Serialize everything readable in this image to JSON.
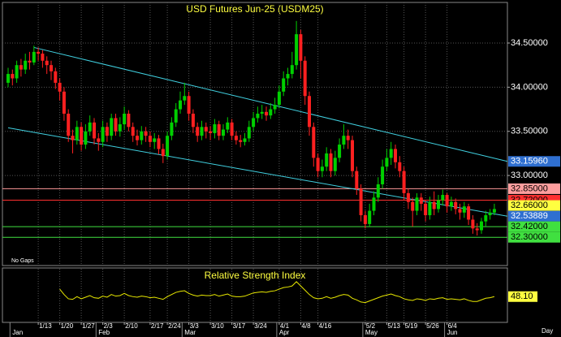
{
  "chart_data": {
    "type": "candlestick",
    "title": "USD Futures Jun-25  (USDM25)",
    "note": "No Gaps",
    "x_label": "Day",
    "categories": [
      null,
      null,
      null,
      null,
      null,
      null,
      null,
      "1/13",
      null,
      null,
      null,
      null,
      "1/20",
      null,
      null,
      null,
      null,
      "1/27",
      null,
      null,
      null,
      null,
      "2/3",
      null,
      null,
      null,
      null,
      "2/10",
      null,
      null,
      null,
      null,
      null,
      "2/17",
      null,
      null,
      null,
      "2/24",
      null,
      null,
      null,
      null,
      "3/3",
      null,
      null,
      null,
      null,
      "3/10",
      null,
      null,
      null,
      null,
      "3/17",
      null,
      null,
      null,
      null,
      "3/24",
      null,
      null,
      null,
      null,
      null,
      "4/1",
      null,
      null,
      null,
      null,
      "4/8",
      null,
      null,
      null,
      "4/16",
      null,
      null,
      null,
      null,
      null,
      null,
      null,
      null,
      null,
      null,
      "5/2",
      null,
      null,
      null,
      null,
      "5/13",
      null,
      null,
      null,
      "5/19",
      null,
      null,
      null,
      null,
      "5/26",
      null,
      null,
      null,
      null,
      "6/4",
      null,
      null,
      null,
      null,
      null,
      null,
      null,
      null,
      null,
      null,
      null
    ],
    "months": [
      {
        "index": 1,
        "label": "Jan"
      },
      {
        "index": 21,
        "label": "Feb"
      },
      {
        "index": 41,
        "label": "Mar"
      },
      {
        "index": 63,
        "label": "Apr"
      },
      {
        "index": 83,
        "label": "May"
      },
      {
        "index": 102,
        "label": "Jun"
      }
    ],
    "open": [
      34.05,
      34.15,
      34.1,
      34.25,
      34.2,
      34.3,
      34.28,
      34.4,
      34.38,
      34.3,
      34.25,
      34.18,
      34.05,
      33.95,
      33.7,
      33.45,
      33.4,
      33.55,
      33.35,
      33.5,
      33.6,
      33.42,
      33.38,
      33.55,
      33.45,
      33.65,
      33.5,
      33.58,
      33.7,
      33.55,
      33.45,
      33.4,
      33.5,
      33.45,
      33.38,
      33.42,
      33.3,
      33.22,
      33.45,
      33.6,
      33.75,
      33.85,
      33.9,
      33.7,
      33.55,
      33.45,
      33.55,
      33.5,
      33.48,
      33.58,
      33.45,
      33.52,
      33.6,
      33.45,
      33.4,
      33.38,
      33.42,
      33.55,
      33.65,
      33.7,
      33.72,
      33.68,
      33.75,
      33.8,
      33.95,
      34.1,
      34.15,
      34.25,
      34.6,
      34.3,
      33.9,
      33.55,
      33.2,
      33.05,
      33.1,
      33.25,
      33.05,
      33.2,
      33.35,
      33.45,
      33.4,
      33.05,
      32.85,
      32.55,
      32.45,
      32.6,
      32.75,
      32.9,
      33.1,
      33.2,
      33.3,
      33.15,
      33.05,
      32.8,
      32.7,
      32.6,
      32.75,
      32.68,
      32.55,
      32.7,
      32.62,
      32.72,
      32.78,
      32.65,
      32.7,
      32.62,
      32.58,
      32.65,
      32.5,
      32.4,
      32.38,
      32.48,
      32.55,
      32.58
    ],
    "high": [
      34.22,
      34.2,
      34.3,
      34.32,
      34.38,
      34.4,
      34.47,
      34.45,
      34.42,
      34.35,
      34.3,
      34.22,
      34.1,
      34.0,
      33.75,
      33.52,
      33.62,
      33.6,
      33.58,
      33.68,
      33.65,
      33.48,
      33.62,
      33.6,
      33.7,
      33.7,
      33.66,
      33.78,
      33.74,
      33.6,
      33.52,
      33.56,
      33.55,
      33.5,
      33.48,
      33.46,
      33.36,
      33.5,
      33.66,
      33.82,
      33.95,
      34.05,
      33.95,
      33.75,
      33.6,
      33.62,
      33.6,
      33.56,
      33.64,
      33.62,
      33.58,
      33.66,
      33.64,
      33.5,
      33.46,
      33.48,
      33.62,
      33.72,
      33.78,
      33.8,
      33.78,
      33.82,
      33.88,
      34.02,
      34.18,
      34.22,
      34.4,
      34.75,
      34.65,
      34.35,
      33.95,
      33.6,
      33.25,
      33.18,
      33.32,
      33.3,
      33.28,
      33.42,
      33.58,
      33.52,
      33.45,
      33.1,
      32.9,
      32.6,
      32.68,
      32.82,
      32.98,
      33.18,
      33.3,
      33.38,
      33.35,
      33.22,
      33.1,
      32.85,
      32.75,
      32.8,
      32.8,
      32.72,
      32.76,
      32.82,
      32.78,
      32.84,
      32.8,
      32.76,
      32.74,
      32.68,
      32.7,
      32.68,
      32.55,
      32.46,
      32.52,
      32.6,
      32.62,
      32.68
    ],
    "low": [
      34.0,
      34.02,
      34.05,
      34.12,
      34.15,
      34.2,
      34.25,
      34.3,
      34.22,
      34.15,
      34.08,
      33.98,
      33.85,
      33.62,
      33.38,
      33.25,
      33.35,
      33.28,
      33.3,
      33.45,
      33.35,
      33.28,
      33.32,
      33.38,
      33.4,
      33.45,
      33.44,
      33.52,
      33.5,
      33.38,
      33.34,
      33.35,
      33.38,
      33.32,
      33.3,
      33.24,
      33.14,
      33.18,
      33.4,
      33.55,
      33.7,
      33.8,
      33.62,
      33.48,
      33.38,
      33.4,
      33.42,
      33.4,
      33.42,
      33.4,
      33.4,
      33.48,
      33.4,
      33.35,
      33.32,
      33.34,
      33.38,
      33.5,
      33.6,
      33.64,
      33.62,
      33.64,
      33.7,
      33.76,
      33.9,
      34.02,
      34.1,
      34.2,
      34.1,
      33.8,
      33.45,
      33.1,
      32.98,
      32.98,
      33.05,
      32.98,
      33.0,
      33.15,
      33.3,
      33.3,
      32.98,
      32.78,
      32.48,
      32.4,
      32.42,
      32.55,
      32.7,
      32.85,
      33.05,
      33.12,
      33.08,
      32.98,
      32.72,
      32.62,
      32.42,
      32.55,
      32.6,
      32.48,
      32.5,
      32.55,
      32.58,
      32.66,
      32.58,
      32.6,
      32.56,
      32.5,
      32.52,
      32.44,
      32.34,
      32.32,
      32.34,
      32.42,
      32.5,
      32.55
    ],
    "close": [
      34.15,
      34.1,
      34.25,
      34.2,
      34.3,
      34.28,
      34.4,
      34.38,
      34.3,
      34.25,
      34.18,
      34.05,
      33.95,
      33.7,
      33.45,
      33.4,
      33.55,
      33.35,
      33.5,
      33.6,
      33.42,
      33.38,
      33.55,
      33.45,
      33.65,
      33.5,
      33.58,
      33.7,
      33.55,
      33.45,
      33.4,
      33.5,
      33.45,
      33.38,
      33.42,
      33.3,
      33.22,
      33.45,
      33.6,
      33.75,
      33.85,
      33.9,
      33.7,
      33.55,
      33.45,
      33.55,
      33.5,
      33.48,
      33.58,
      33.45,
      33.52,
      33.6,
      33.45,
      33.4,
      33.38,
      33.42,
      33.55,
      33.65,
      33.7,
      33.72,
      33.68,
      33.75,
      33.8,
      33.95,
      34.1,
      34.15,
      34.25,
      34.6,
      34.3,
      33.9,
      33.55,
      33.2,
      33.05,
      33.1,
      33.25,
      33.05,
      33.2,
      33.35,
      33.45,
      33.4,
      33.05,
      32.85,
      32.55,
      32.45,
      32.6,
      32.75,
      32.9,
      33.1,
      33.2,
      33.3,
      33.15,
      33.05,
      32.8,
      32.7,
      32.6,
      32.75,
      32.68,
      32.55,
      32.7,
      32.62,
      32.72,
      32.78,
      32.65,
      32.7,
      32.62,
      32.58,
      32.65,
      32.5,
      32.4,
      32.38,
      32.48,
      32.55,
      32.58,
      32.62
    ],
    "up_color": "#00d000",
    "down_color": "#ff2020",
    "ylim": [
      31.98,
      34.96
    ],
    "yticks": [
      {
        "value": 34.5,
        "label": "34.50000"
      },
      {
        "value": 34,
        "label": "34.00000"
      },
      {
        "value": 33.5,
        "label": "33.50000"
      },
      {
        "value": 33,
        "label": "33.00000"
      }
    ],
    "grid": true,
    "trendlines": [
      {
        "from_index": 6,
        "from_value": 34.45,
        "to_value": 33.1596,
        "color": "#40d0e0"
      },
      {
        "from_index": 0,
        "from_value": 33.54,
        "to_value": 32.53889,
        "color": "#40d0e0"
      }
    ],
    "hlines": [
      {
        "value": 32.85,
        "color": "#ff9999"
      },
      {
        "value": 32.72,
        "color": "#ff3030"
      },
      {
        "value": 32.42,
        "color": "#40e040"
      },
      {
        "value": 32.3,
        "color": "#40e040"
      }
    ],
    "price_labels": [
      {
        "value": 33.1596,
        "label": "33.15960",
        "color": "#2f6fd0",
        "text_color": "#ffffff"
      },
      {
        "value": 32.85,
        "label": "32.85000",
        "color": "#ff9e9e",
        "text_color": "#000000"
      },
      {
        "value": 32.72,
        "label": "32.72000",
        "color": "#ff3030",
        "text_color": "#000000"
      },
      {
        "value": 32.66,
        "label": "32.66000",
        "color": "#ffff40",
        "text_color": "#000000"
      },
      {
        "value": 32.53889,
        "label": "32.53889",
        "color": "#2f6fd0",
        "text_color": "#ffffff"
      },
      {
        "value": 32.42,
        "label": "32.42000",
        "color": "#40e040",
        "text_color": "#000000"
      },
      {
        "value": 32.3,
        "label": "32.30000",
        "color": "#40e040",
        "text_color": "#000000"
      }
    ],
    "rsi": {
      "title": "Relative Strength Index",
      "color": "#e8e800",
      "ylim": [
        0,
        100
      ],
      "values": [
        null,
        null,
        null,
        null,
        null,
        null,
        null,
        null,
        null,
        null,
        null,
        null,
        62,
        52,
        44,
        43,
        48,
        44,
        47,
        50,
        46,
        45,
        49,
        47,
        52,
        49,
        50,
        54,
        50,
        48,
        47,
        49,
        48,
        46,
        47,
        45,
        43,
        48,
        52,
        56,
        58,
        59,
        54,
        51,
        49,
        51,
        50,
        50,
        52,
        49,
        51,
        53,
        49,
        48,
        48,
        49,
        52,
        55,
        56,
        57,
        56,
        58,
        59,
        62,
        65,
        66,
        68,
        76,
        68,
        60,
        52,
        46,
        44,
        45,
        48,
        45,
        47,
        50,
        52,
        51,
        45,
        42,
        38,
        37,
        40,
        43,
        46,
        49,
        51,
        53,
        50,
        48,
        44,
        42,
        41,
        44,
        43,
        41,
        44,
        43,
        45,
        46,
        43,
        44,
        43,
        42,
        44,
        41,
        39,
        39,
        42,
        45,
        46,
        48.1
      ],
      "last_label": {
        "value": 48.1,
        "label": "48.10",
        "color": "#ffff40"
      }
    }
  }
}
